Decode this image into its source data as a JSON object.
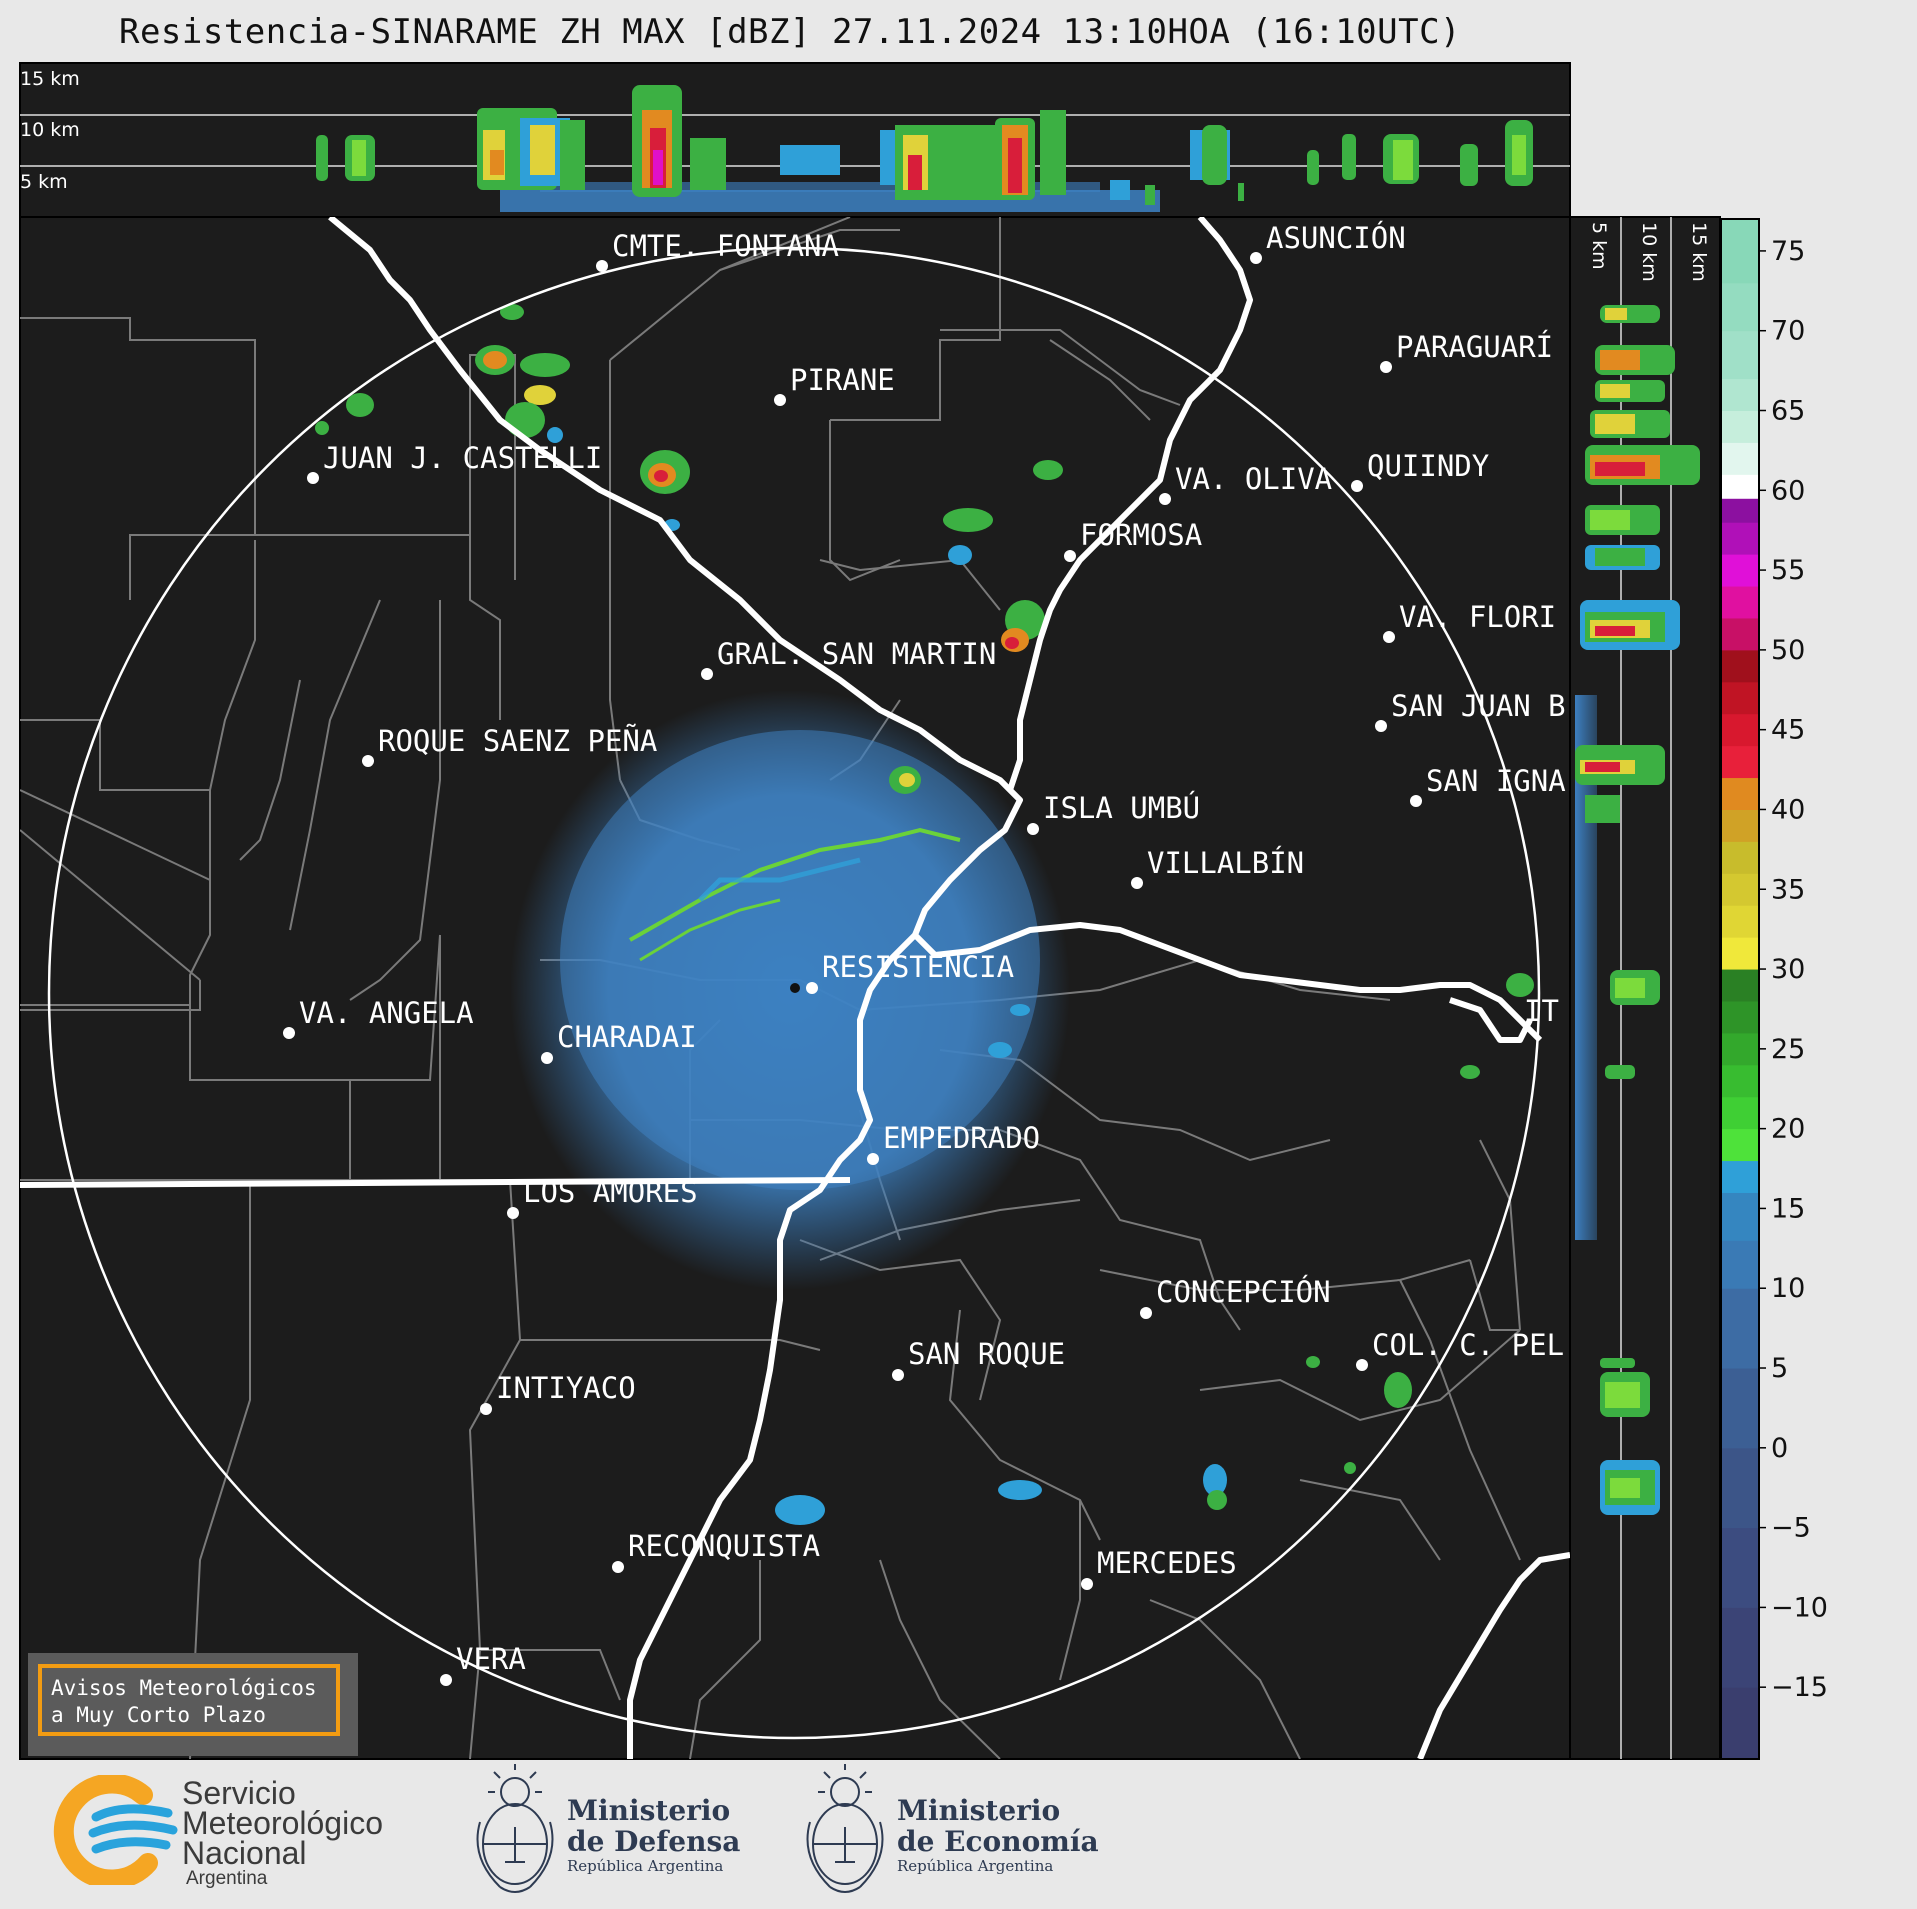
{
  "header": {
    "title": "Resistencia-SINARAME ZH MAX [dBZ] 27.11.2024 13:10HOA (16:10UTC)"
  },
  "cross_section_top": {
    "height_labels": [
      "15 km",
      "10 km",
      "5 km"
    ]
  },
  "cross_section_right": {
    "height_labels": [
      "5 km",
      "10 km",
      "15 km"
    ]
  },
  "colorbar": {
    "unit": "dBZ",
    "ticks": [
      75,
      70,
      65,
      60,
      55,
      50,
      45,
      40,
      35,
      30,
      25,
      20,
      15,
      10,
      5,
      0,
      -5,
      -10,
      -15
    ],
    "tick_labels": [
      "75",
      "70",
      "65",
      "60",
      "55",
      "50",
      "45",
      "40",
      "35",
      "30",
      "25",
      "20",
      "15",
      "10",
      "5",
      "0",
      "−5",
      "−10",
      "−15"
    ]
  },
  "map": {
    "radar_site": "RESISTENCIA",
    "cities": [
      {
        "name": "CMTE. FONTANA"
      },
      {
        "name": "ASUNCIÓN"
      },
      {
        "name": "PIRANE"
      },
      {
        "name": "PARAGUARÍ"
      },
      {
        "name": "JUAN J. CASTELLI"
      },
      {
        "name": "VA. OLIVA"
      },
      {
        "name": "QUIINDY"
      },
      {
        "name": "FORMOSA"
      },
      {
        "name": "VA. FLORI"
      },
      {
        "name": "GRAL. SAN MARTIN"
      },
      {
        "name": "SAN JUAN B"
      },
      {
        "name": "ROQUE SAENZ PEÑA"
      },
      {
        "name": "SAN IGNA"
      },
      {
        "name": "ISLA UMBÚ"
      },
      {
        "name": "VILLALBÍN"
      },
      {
        "name": "RESISTENCIA"
      },
      {
        "name": "IT"
      },
      {
        "name": "VA. ANGELA"
      },
      {
        "name": "CHARADAI"
      },
      {
        "name": "EMPEDRADO"
      },
      {
        "name": "LOS AMORES"
      },
      {
        "name": "CONCEPCIÓN"
      },
      {
        "name": "COL. C. PEL"
      },
      {
        "name": "SAN ROQUE"
      },
      {
        "name": "INTIYACO"
      },
      {
        "name": "RECONQUISTA"
      },
      {
        "name": "MERCEDES"
      },
      {
        "name": "VERA"
      }
    ]
  },
  "notice": {
    "line1": "Avisos Meteorológicos",
    "line2": "a Muy Corto Plazo"
  },
  "logos": {
    "smn": {
      "line1": "Servicio",
      "line2": "Meteorológico",
      "line3": "Nacional",
      "country": "Argentina"
    },
    "defensa": {
      "line1": "Ministerio",
      "line2": "de Defensa",
      "sub": "República Argentina"
    },
    "economia": {
      "line1": "Ministerio",
      "line2": "de Economía",
      "sub": "República Argentina"
    }
  },
  "colors": {
    "background": "#1c1c1c",
    "frame": "#e8e8e8",
    "notice_border": "#f39c12",
    "smn_orange": "#f5a623",
    "smn_blue": "#29a3dc"
  }
}
